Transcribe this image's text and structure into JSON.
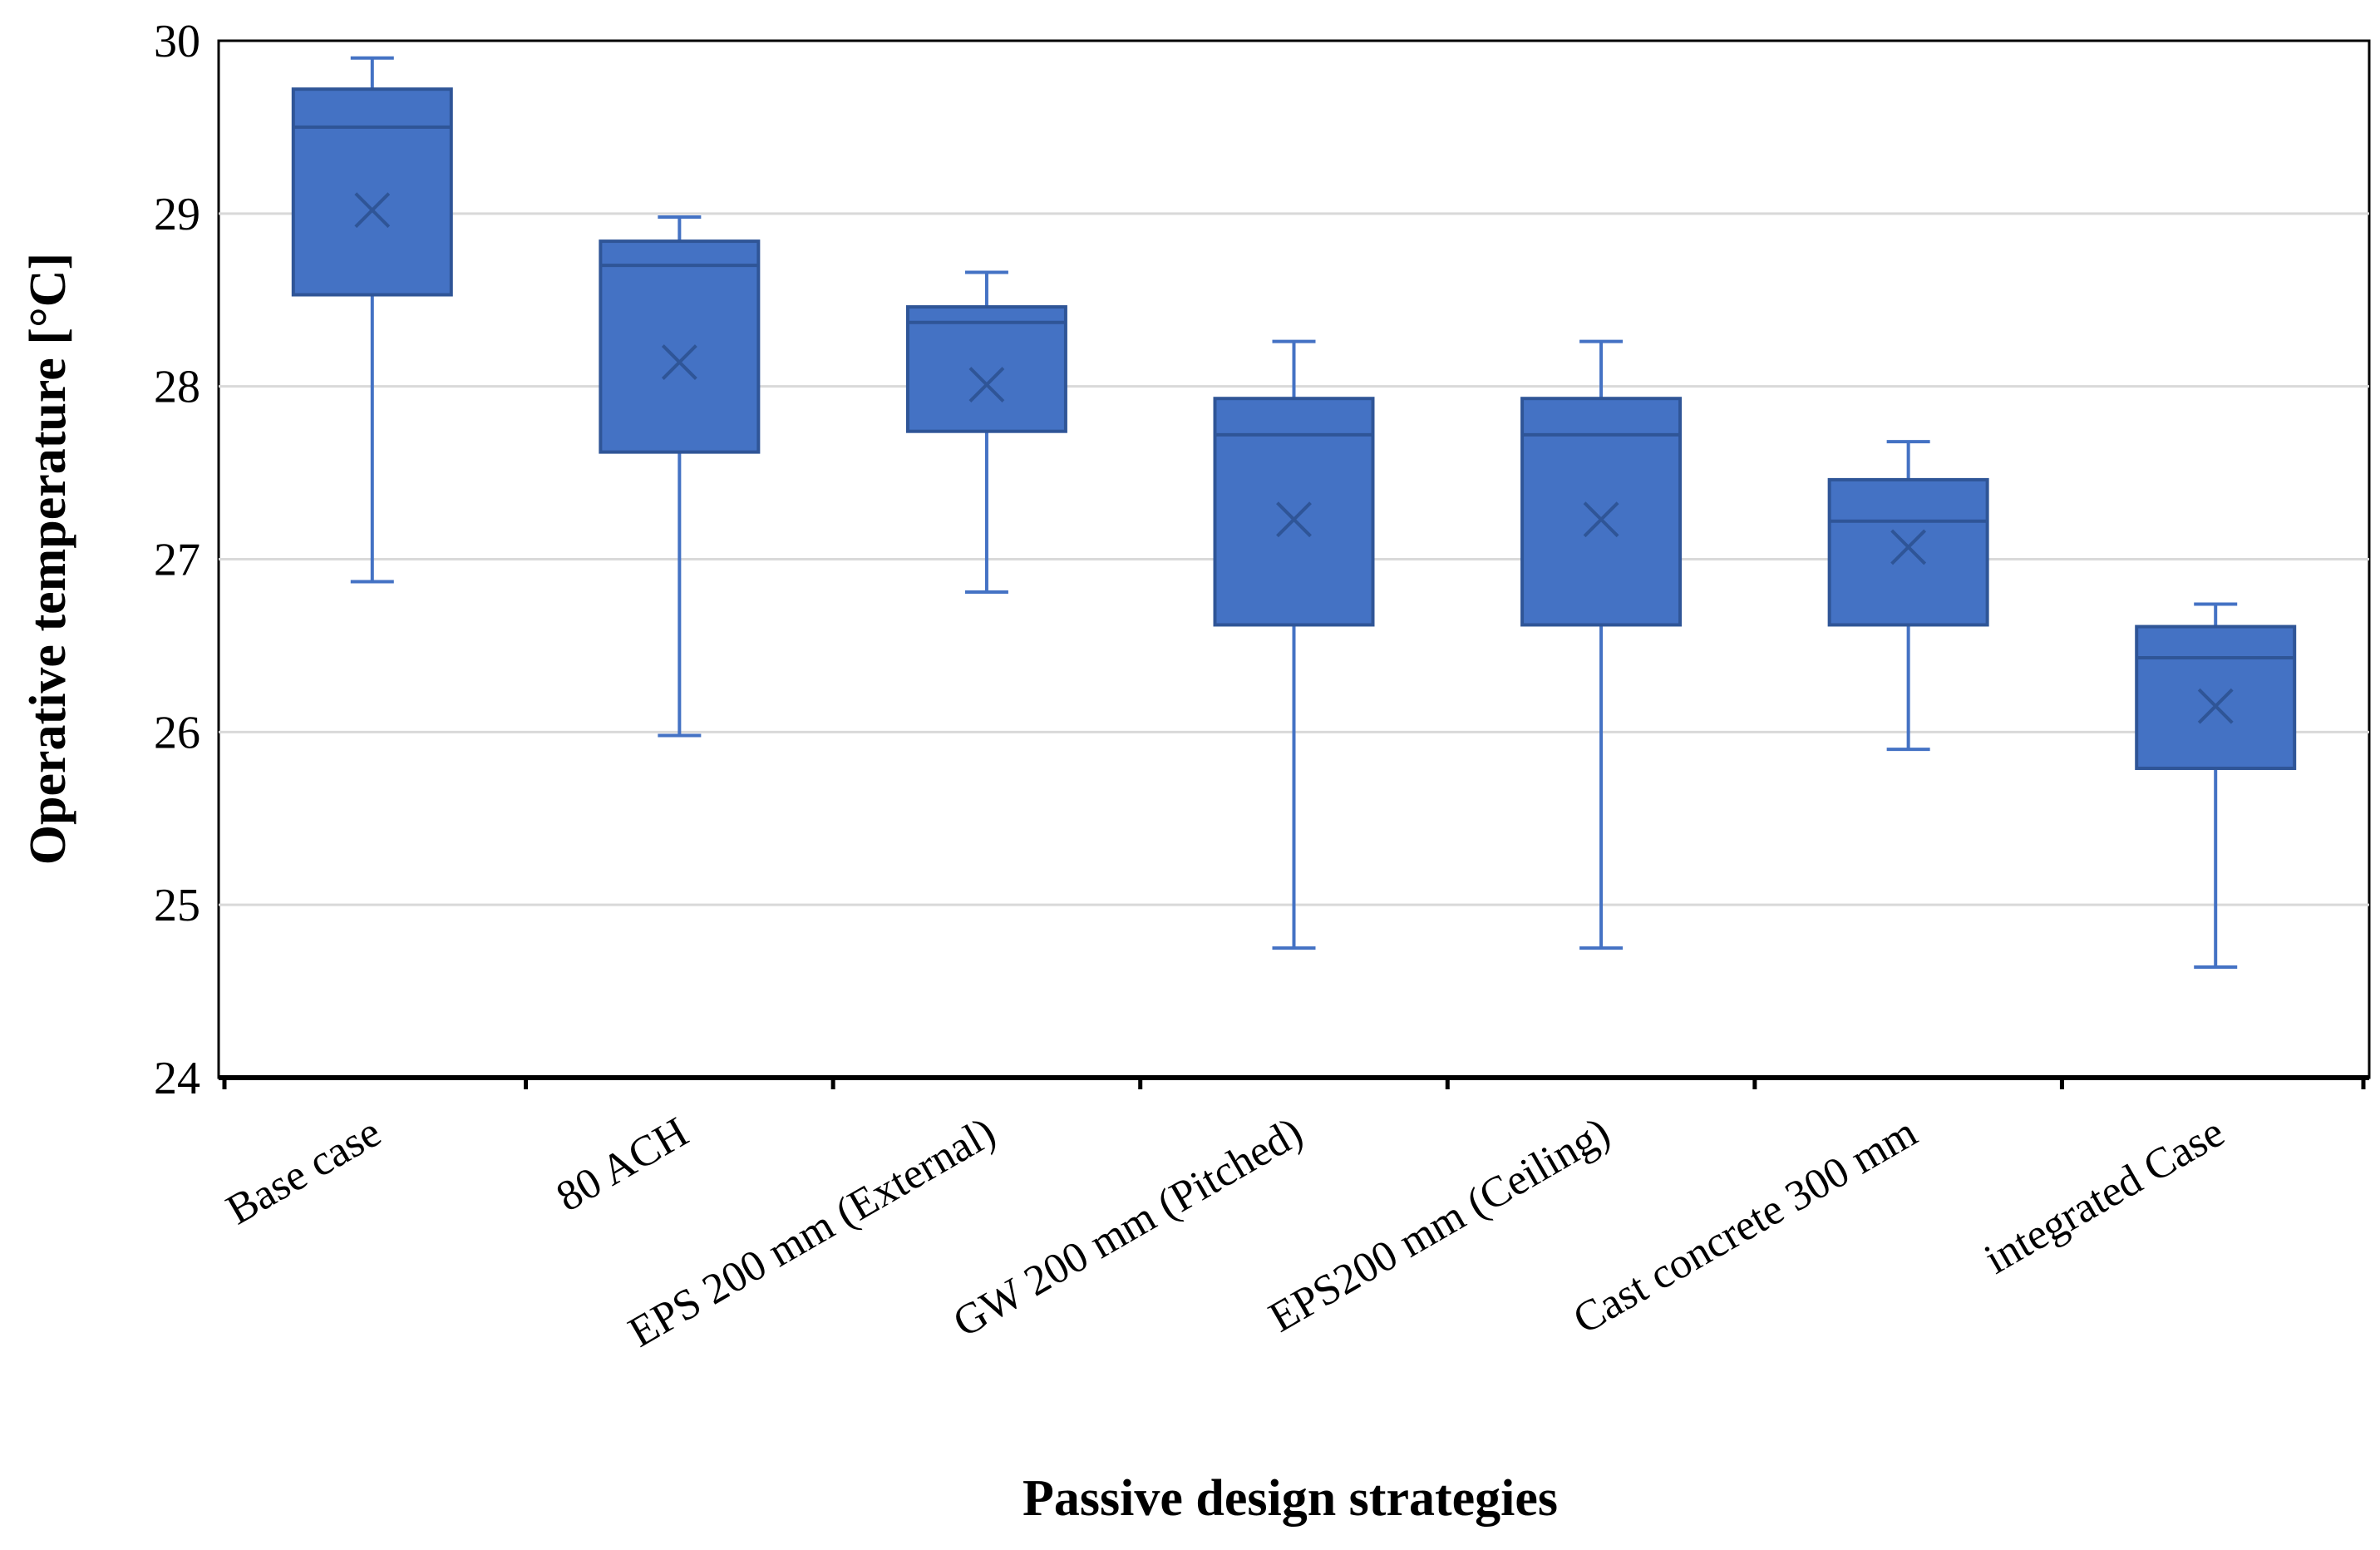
{
  "chart_data": {
    "type": "box",
    "title": "",
    "xlabel": "Passive design strategies",
    "ylabel": "Operative temperature [°C]",
    "ylim": [
      24,
      30
    ],
    "yticks": [
      24,
      25,
      26,
      27,
      28,
      29,
      30
    ],
    "grid": true,
    "categories": [
      "Base case",
      "80 ACH",
      "EPS 200 mm (External)",
      "GW 200 mm (Pitched)",
      "EPS200 mm (Ceiling)",
      "Cast concrete 300 mm",
      "integrated Case"
    ],
    "boxes": [
      {
        "min": 26.87,
        "q1": 28.53,
        "median": 29.5,
        "q3": 29.72,
        "max": 29.9,
        "mean": 29.02
      },
      {
        "min": 25.98,
        "q1": 27.62,
        "median": 28.7,
        "q3": 28.84,
        "max": 28.98,
        "mean": 28.14
      },
      {
        "min": 26.81,
        "q1": 27.74,
        "median": 28.37,
        "q3": 28.46,
        "max": 28.66,
        "mean": 28.01
      },
      {
        "min": 24.75,
        "q1": 26.62,
        "median": 27.72,
        "q3": 27.93,
        "max": 28.26,
        "mean": 27.23
      },
      {
        "min": 24.75,
        "q1": 26.62,
        "median": 27.72,
        "q3": 27.93,
        "max": 28.26,
        "mean": 27.23
      },
      {
        "min": 25.9,
        "q1": 26.62,
        "median": 27.22,
        "q3": 27.46,
        "max": 27.68,
        "mean": 27.07
      },
      {
        "min": 24.64,
        "q1": 25.79,
        "median": 26.43,
        "q3": 26.61,
        "max": 26.74,
        "mean": 26.15
      }
    ],
    "colors": {
      "box_fill": "#4472C4",
      "box_edge": "#2F5597",
      "whisker": "#4472C4",
      "grid": "#D9D9D9",
      "axis": "#000000"
    }
  }
}
